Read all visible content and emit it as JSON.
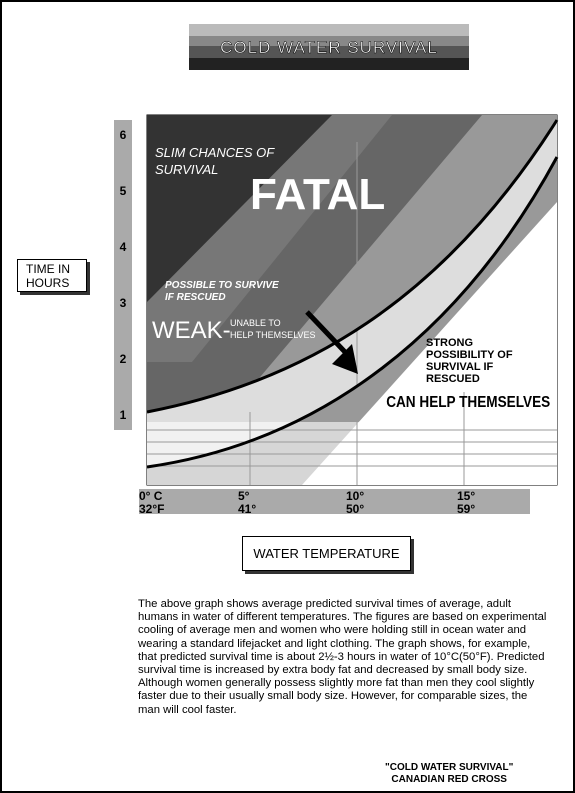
{
  "header": {
    "title": "COLD WATER SURVIVAL"
  },
  "axes": {
    "y_label": "TIME IN HOURS",
    "y_ticks": [
      1,
      2,
      3,
      4,
      5,
      6
    ],
    "x_ticks": [
      {
        "celsius": "0° C",
        "fahrenheit": "32°F"
      },
      {
        "celsius": "5°",
        "fahrenheit": "41°"
      },
      {
        "celsius": "10°",
        "fahrenheit": "50°"
      },
      {
        "celsius": "15°",
        "fahrenheit": "59°"
      }
    ],
    "x_label": "WATER TEMPERATURE"
  },
  "zones": {
    "slim": "SLIM CHANCES OF SURVIVAL",
    "fatal": "FATAL",
    "possible": "POSSIBLE TO SURVIVE IF RESCUED",
    "weak": "WEAK-",
    "unable": "UNABLE TO HELP THEMSELVES",
    "strong": "STRONG POSSIBILITY OF SURVIVAL IF RESCUED",
    "can_help": "CAN HELP THEMSELVES"
  },
  "description": "The above graph shows average predicted survival times of average, adult humans in water of different temperatures.  The figures are based on experimental cooling of average men and women who were holding still in ocean water and wearing a standard lifejacket and light clothing.  The graph shows, for example, that predicted survival time is about 2½-3 hours in water of 10°C(50°F).  Predicted survival time is increased by extra body fat and decreased by small body size.  Although women generally possess slightly more fat than men they cool slightly faster due to their usually small body size.  However, for comparable sizes, the man will cool faster.",
  "credit": {
    "line1": "\"COLD WATER SURVIVAL\"",
    "line2": "CANADIAN RED CROSS"
  }
}
